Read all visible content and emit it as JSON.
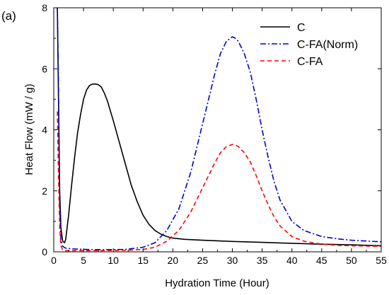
{
  "chart_data": {
    "type": "line",
    "panel_label": "(a)",
    "title": "",
    "xlabel": "Hydration Time (Hour)",
    "ylabel": "Heat Flow (mW / g)",
    "xlim": [
      0,
      55
    ],
    "ylim": [
      0,
      8
    ],
    "xticks": [
      0,
      5,
      10,
      15,
      20,
      25,
      30,
      35,
      40,
      45,
      50,
      55
    ],
    "yticks": [
      0,
      2,
      4,
      6,
      8
    ],
    "grid": false,
    "legend_position": "top-right",
    "series": [
      {
        "name": "C",
        "color": "#000000",
        "dash": "solid",
        "x": [
          0.6,
          0.8,
          1.0,
          1.2,
          1.5,
          1.8,
          2.0,
          2.5,
          3,
          3.5,
          4,
          4.5,
          5,
          5.5,
          6,
          6.5,
          7,
          7.5,
          8,
          8.5,
          9,
          10,
          11,
          12,
          13,
          14,
          15,
          16,
          17,
          18,
          19,
          20,
          22,
          25,
          30,
          35,
          40,
          45,
          50,
          55
        ],
        "y": [
          8.0,
          5.0,
          2.0,
          0.8,
          0.35,
          0.3,
          0.4,
          1.2,
          2.2,
          3.1,
          3.9,
          4.5,
          5.0,
          5.3,
          5.45,
          5.5,
          5.5,
          5.48,
          5.4,
          5.2,
          4.95,
          4.3,
          3.6,
          2.9,
          2.2,
          1.65,
          1.2,
          0.9,
          0.7,
          0.58,
          0.5,
          0.45,
          0.41,
          0.38,
          0.34,
          0.31,
          0.28,
          0.25,
          0.23,
          0.2
        ]
      },
      {
        "name": "C-FA(Norm)",
        "color": "#0000cc",
        "dash": "dashdot",
        "x": [
          0.6,
          0.8,
          1.0,
          1.2,
          1.5,
          2,
          3,
          5,
          8,
          12,
          15,
          17,
          19,
          21,
          23,
          25,
          26,
          27,
          28,
          29,
          30,
          30.5,
          31,
          32,
          33,
          34,
          35,
          36,
          37,
          38,
          40,
          42,
          45,
          48,
          50,
          55
        ],
        "y": [
          8.0,
          5.5,
          1.5,
          0.4,
          0.18,
          0.12,
          0.1,
          0.08,
          0.07,
          0.08,
          0.15,
          0.3,
          0.7,
          1.4,
          2.6,
          4.2,
          5.0,
          5.8,
          6.5,
          6.9,
          7.05,
          7.0,
          6.9,
          6.5,
          5.9,
          5.0,
          4.0,
          3.1,
          2.3,
          1.7,
          1.0,
          0.7,
          0.5,
          0.42,
          0.38,
          0.33
        ]
      },
      {
        "name": "C-FA",
        "color": "#ff0000",
        "dash": "dashed",
        "x": [
          0.6,
          0.8,
          1.0,
          1.2,
          1.5,
          2,
          3,
          5,
          8,
          12,
          15,
          17,
          19,
          21,
          23,
          25,
          26,
          27,
          28,
          29,
          30,
          30.5,
          31,
          32,
          33,
          34,
          35,
          36,
          37,
          38,
          40,
          42,
          45,
          48,
          50,
          55
        ],
        "y": [
          4.6,
          2.5,
          0.8,
          0.2,
          0.06,
          0.04,
          0.04,
          0.04,
          0.04,
          0.05,
          0.08,
          0.15,
          0.35,
          0.7,
          1.3,
          2.1,
          2.5,
          2.9,
          3.25,
          3.45,
          3.52,
          3.5,
          3.45,
          3.25,
          2.95,
          2.5,
          2.0,
          1.55,
          1.15,
          0.85,
          0.5,
          0.35,
          0.25,
          0.21,
          0.2,
          0.18
        ]
      }
    ]
  }
}
